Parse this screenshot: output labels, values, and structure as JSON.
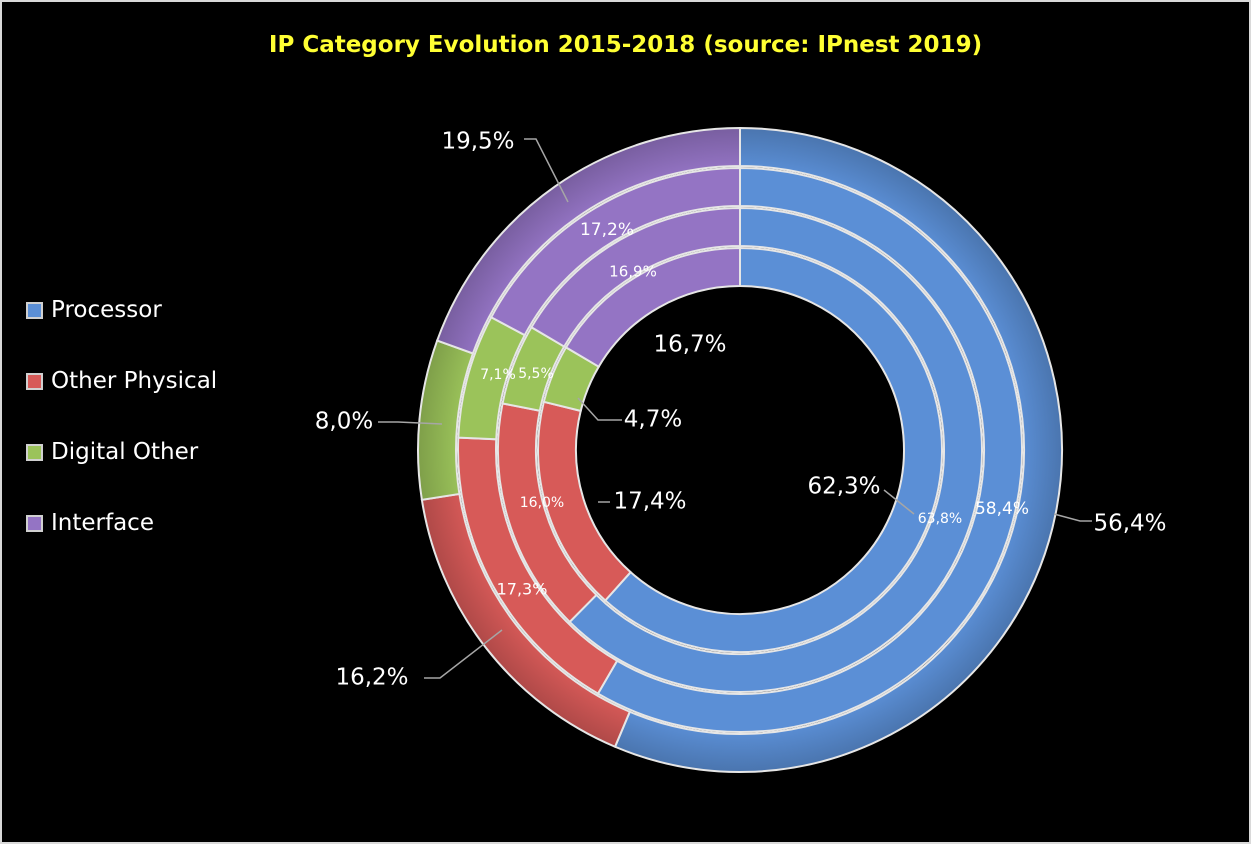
{
  "chart_data": {
    "type": "donut",
    "title": "IP Category Evolution 2015-2018 (source: IPnest 2019)",
    "categories": [
      "Processor",
      "Other Physical",
      "Digital Other",
      "Interface"
    ],
    "colors": [
      "#5b8fd6",
      "#d75a58",
      "#9bc35a",
      "#9474c4"
    ],
    "rings": [
      {
        "ring": "outer",
        "values": [
          56.4,
          16.2,
          8.0,
          19.5
        ],
        "labels": [
          "56,4%",
          "16,2%",
          "8,0%",
          "19,5%"
        ]
      },
      {
        "ring": "ring-2",
        "values": [
          58.4,
          17.3,
          7.1,
          17.2
        ],
        "labels": [
          "58,4%",
          "17,3%",
          "7,1%",
          "17,2%"
        ]
      },
      {
        "ring": "ring-3",
        "values": [
          63.8,
          16.0,
          5.5,
          16.9
        ],
        "labels": [
          "63,8%",
          "16,0%",
          "5,5%",
          "16,9%"
        ]
      },
      {
        "ring": "inner",
        "values": [
          62.3,
          17.4,
          4.7,
          16.7
        ],
        "labels": [
          "62,3%",
          "17,4%",
          "4,7%",
          "16,7%"
        ]
      }
    ],
    "legend_position": "left"
  }
}
